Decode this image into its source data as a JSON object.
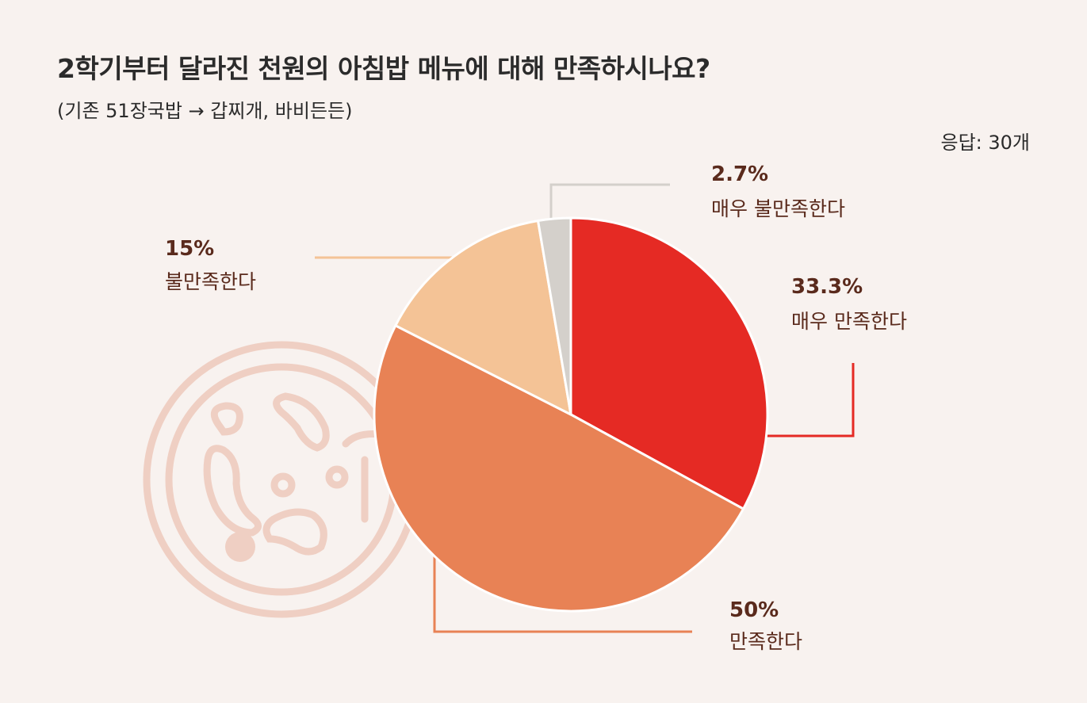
{
  "header": {
    "title": "2학기부터 달라진 천원의 아침밥 메뉴에 대해 만족하시나요?",
    "subtitle": "(기존 51장국밥 → 갑찌개, 바비든든)",
    "responses": "응답: 30개"
  },
  "chart_data": {
    "type": "pie",
    "title": "2학기부터 달라진 천원의 아침밥 메뉴에 대해 만족하시나요?",
    "subtitle": "(기존 51장국밥 → 갑찌개, 바비든든)",
    "slices": [
      {
        "label": "매우 만족한다",
        "value": 33.3,
        "display": "33.3%",
        "color": "#e52a24"
      },
      {
        "label": "만족한다",
        "value": 50,
        "display": "50%",
        "color": "#e88255"
      },
      {
        "label": "불만족한다",
        "value": 15,
        "display": "15%",
        "color": "#f4c396"
      },
      {
        "label": "매우 불만족한다",
        "value": 2.7,
        "display": "2.7%",
        "color": "#d4d0cb"
      }
    ],
    "start_angle": "12 o'clock",
    "direction": "clockwise"
  },
  "colors": {
    "background": "#f8f2ef",
    "decoration": "#efcfc3",
    "label_text": "#5a2a1c",
    "title_text": "#2b2b2b"
  },
  "decoration": {
    "icon": "petri-dish-icon"
  }
}
